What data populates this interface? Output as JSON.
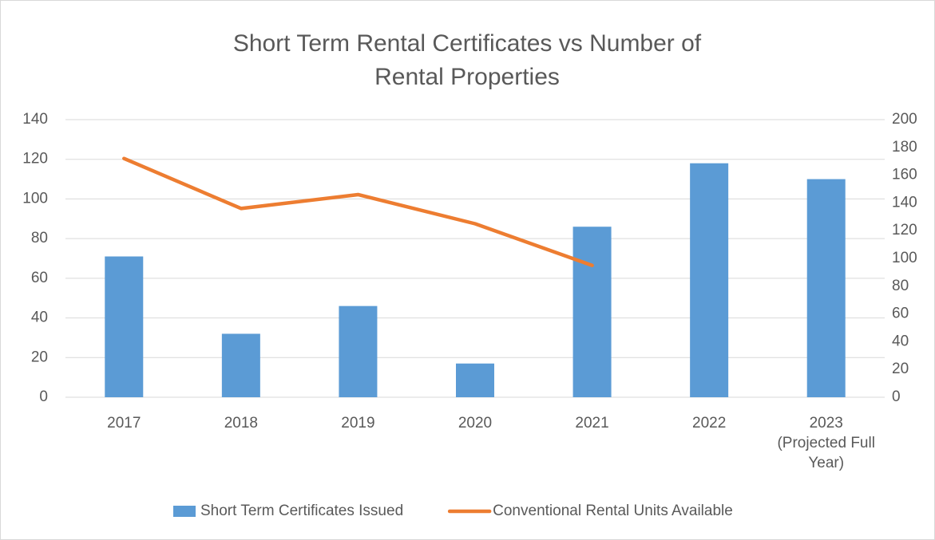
{
  "chart_data": {
    "type": "bar",
    "title": "Short Term Rental Certificates vs Number of Rental Properties",
    "categories": [
      "2017",
      "2018",
      "2019",
      "2020",
      "2021",
      "2022",
      "2023 (Projected Full Year)"
    ],
    "series": [
      {
        "name": "Short Term Certificates Issued",
        "type": "bar",
        "color": "#5b9bd5",
        "values": [
          71,
          32,
          46,
          17,
          86,
          118,
          110
        ]
      },
      {
        "name": "Conventional Rental Units Available",
        "type": "line",
        "axis": "y2",
        "color": "#ed7d31",
        "values": [
          172,
          136,
          146,
          125,
          95,
          null,
          null
        ]
      }
    ],
    "ylim": [
      0,
      140
    ],
    "yticks": [
      0,
      20,
      40,
      60,
      80,
      100,
      120,
      140
    ],
    "y2lim": [
      0,
      200
    ],
    "y2ticks": [
      0,
      20,
      40,
      60,
      80,
      100,
      120,
      140,
      160,
      180,
      200
    ],
    "grid": true,
    "legend": "bottom"
  }
}
